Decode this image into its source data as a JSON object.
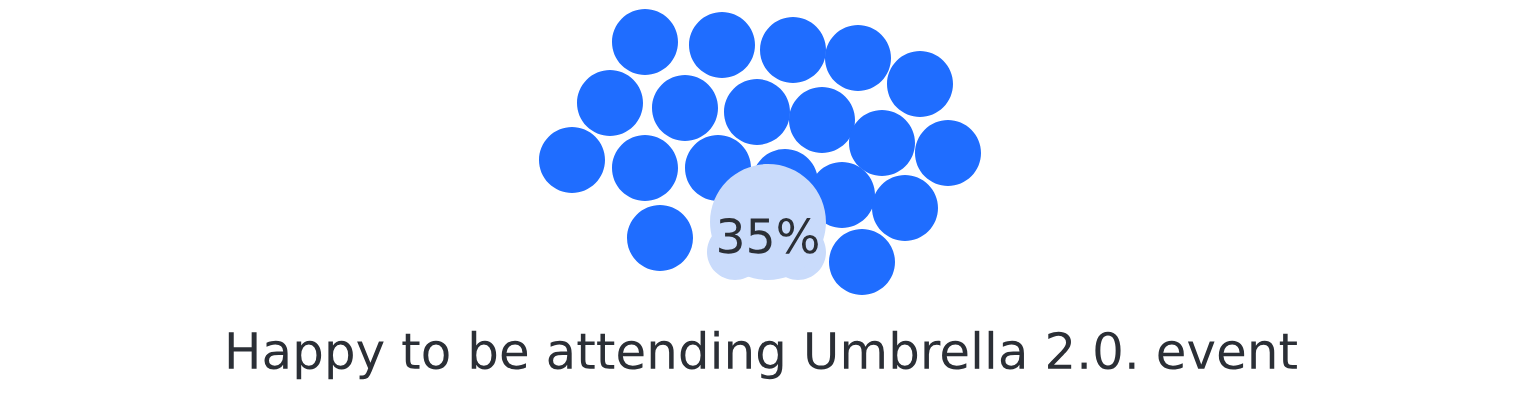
{
  "chart_data": {
    "type": "other",
    "title": "Happy to be attending Umbrella 2.0. event",
    "categories": [
      null
    ],
    "values": [
      35
    ],
    "value_labels": [
      "35%"
    ]
  }
}
